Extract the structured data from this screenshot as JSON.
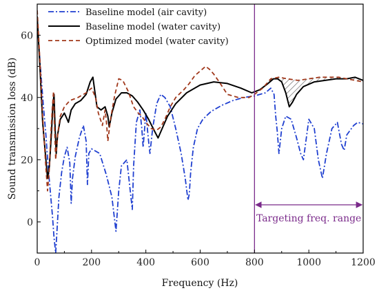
{
  "chart_data": {
    "type": "line",
    "title": "",
    "xlabel": "Frequency (Hz)",
    "ylabel": "Sound transmission loss (dB)",
    "xlim": [
      0,
      1200
    ],
    "ylim": [
      -10,
      70
    ],
    "xticks": [
      0,
      200,
      400,
      600,
      800,
      1000,
      1200
    ],
    "yticks": [
      0,
      20,
      40,
      60
    ],
    "grid": false,
    "legend_position": "top-left",
    "colors": {
      "air": "#1f3fd0",
      "water": "#000000",
      "optimized": "#a0371a",
      "annotation": "#7a2a8a",
      "hatch": "#555555"
    },
    "series": [
      {
        "name": "Baseline model (air cavity)",
        "style": "dash-dot",
        "x": [
          0,
          10,
          22,
          32,
          40,
          48,
          56,
          62,
          68,
          72,
          80,
          90,
          100,
          110,
          120,
          125,
          130,
          140,
          155,
          170,
          180,
          185,
          190,
          200,
          230,
          255,
          275,
          290,
          300,
          310,
          330,
          345,
          350,
          355,
          365,
          378,
          385,
          390,
          400,
          410,
          415,
          425,
          440,
          455,
          470,
          490,
          510,
          530,
          545,
          555,
          560,
          565,
          575,
          590,
          610,
          640,
          680,
          720,
          760,
          800,
          840,
          860,
          872,
          878,
          884,
          890,
          900,
          915,
          935,
          955,
          970,
          980,
          1000,
          1020,
          1035,
          1050,
          1065,
          1085,
          1105,
          1120,
          1130,
          1140,
          1165,
          1180,
          1200
        ],
        "y": [
          64,
          52,
          38,
          28,
          18,
          10,
          2,
          -5,
          -10,
          -4,
          8,
          16,
          21,
          24,
          19,
          6,
          14,
          21,
          27,
          31,
          26,
          12,
          22,
          23.5,
          22,
          15,
          8,
          -3,
          10,
          18,
          20,
          8,
          4,
          18,
          32,
          36,
          30,
          24,
          35,
          26,
          22,
          30,
          38,
          41,
          40,
          37,
          30,
          22,
          14,
          7,
          9,
          16,
          24,
          30,
          33,
          35.5,
          37.5,
          39,
          40,
          40.5,
          41.5,
          43,
          41,
          34,
          29,
          22,
          30,
          34,
          33,
          27,
          22,
          20,
          33,
          30,
          20,
          14,
          22,
          30,
          32,
          25,
          23,
          28,
          31,
          32,
          31.5
        ]
      },
      {
        "name": "Baseline model (water cavity)",
        "style": "solid",
        "x": [
          0,
          10,
          20,
          30,
          38,
          45,
          52,
          58,
          62,
          66,
          70,
          75,
          85,
          100,
          110,
          115,
          125,
          140,
          160,
          180,
          195,
          205,
          212,
          220,
          235,
          250,
          260,
          265,
          275,
          290,
          310,
          330,
          350,
          370,
          390,
          410,
          430,
          445,
          460,
          480,
          510,
          550,
          600,
          650,
          700,
          750,
          790,
          820,
          850,
          870,
          885,
          900,
          915,
          928,
          940,
          955,
          980,
          1020,
          1060,
          1100,
          1140,
          1170,
          1200
        ],
        "y": [
          66,
          50,
          32,
          22,
          14,
          18,
          28,
          38,
          41,
          30,
          22,
          28,
          33,
          35,
          33,
          32,
          36,
          38,
          39,
          41,
          45,
          46.5,
          42,
          37,
          36,
          37,
          34,
          30.5,
          35,
          39.5,
          41.5,
          41.5,
          40.5,
          38.5,
          36,
          33,
          29.5,
          27,
          30,
          34,
          38,
          41.5,
          44,
          45,
          44.5,
          43,
          41.5,
          42.5,
          44.5,
          46,
          46,
          45,
          41.5,
          37,
          38.5,
          41,
          43.5,
          45,
          45.5,
          46,
          46,
          46.5,
          45.5
        ]
      },
      {
        "name": "Optimized model (water cavity)",
        "style": "dashed",
        "x": [
          0,
          10,
          20,
          30,
          38,
          44,
          50,
          55,
          60,
          64,
          68,
          75,
          85,
          100,
          120,
          150,
          180,
          200,
          215,
          225,
          240,
          250,
          255,
          260,
          270,
          285,
          300,
          315,
          335,
          355,
          372,
          385,
          400,
          420,
          440,
          455,
          470,
          490,
          510,
          540,
          560,
          580,
          600,
          620,
          635,
          650,
          670,
          700,
          740,
          780,
          800,
          830,
          860,
          890,
          920,
          960,
          1000,
          1040,
          1080,
          1110,
          1140,
          1170,
          1200
        ],
        "y": [
          68,
          52,
          34,
          20,
          10,
          16,
          28,
          36,
          42,
          30,
          20,
          28,
          34,
          37,
          39,
          40,
          41.5,
          43,
          40,
          35,
          31,
          36,
          32,
          26,
          33,
          40.5,
          46,
          45.5,
          42,
          37,
          35,
          34,
          32,
          30,
          29.5,
          30.5,
          33,
          37,
          40,
          42.5,
          44.5,
          47,
          48.5,
          50,
          49,
          47.5,
          45,
          41,
          40,
          40,
          41,
          43,
          46,
          46.5,
          46,
          45.5,
          46,
          46.5,
          46.5,
          46.5,
          46,
          45.5,
          45
        ]
      }
    ],
    "annotations": [
      {
        "type": "vline",
        "x": 800,
        "color": "#7a2a8a"
      },
      {
        "type": "double-arrow",
        "x": [
          800,
          1200
        ],
        "y": 5.5,
        "label": "Targeting freq. range"
      },
      {
        "type": "hatched-region",
        "x_range": [
          800,
          1200
        ],
        "between": [
          "Baseline model (water cavity)",
          "Optimized model (water cavity)"
        ]
      }
    ]
  }
}
